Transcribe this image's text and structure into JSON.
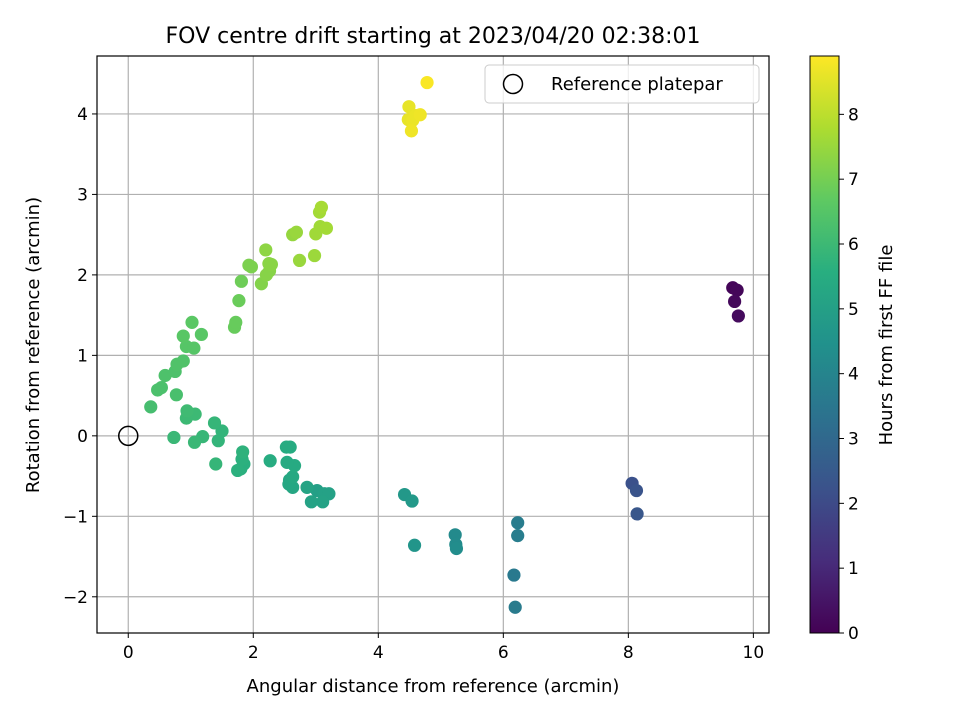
{
  "chart_data": {
    "type": "scatter",
    "title": "FOV centre drift starting at 2023/04/20 02:38:01",
    "xlabel": "Angular distance from reference (arcmin)",
    "ylabel": "Rotation from reference (arcmin)",
    "colorbar_label": "Hours from first FF file",
    "colormap": "viridis",
    "xlim": [
      -0.5,
      10.25
    ],
    "ylim": [
      -2.45,
      4.72
    ],
    "clim": [
      0,
      8.9
    ],
    "x_ticks": [
      0,
      2,
      4,
      6,
      8,
      10
    ],
    "y_ticks": [
      -2,
      -1,
      0,
      1,
      2,
      3,
      4
    ],
    "colorbar_ticks": [
      0,
      1,
      2,
      3,
      4,
      5,
      6,
      7,
      8
    ],
    "grid": true,
    "legend": {
      "placement": "top-right",
      "entries": [
        {
          "label": "Reference platepar",
          "marker": "hollow-circle"
        }
      ]
    },
    "reference_point": {
      "x": 0,
      "y": 0
    },
    "points": [
      {
        "x": 9.67,
        "y": 1.84,
        "c": 0.1
      },
      {
        "x": 9.74,
        "y": 1.81,
        "c": 0.15
      },
      {
        "x": 9.7,
        "y": 1.67,
        "c": 0.2
      },
      {
        "x": 9.76,
        "y": 1.49,
        "c": 0.25
      },
      {
        "x": 8.06,
        "y": -0.59,
        "c": 2.2
      },
      {
        "x": 8.13,
        "y": -0.68,
        "c": 2.3
      },
      {
        "x": 8.14,
        "y": -0.97,
        "c": 2.4
      },
      {
        "x": 6.17,
        "y": -1.73,
        "c": 3.6
      },
      {
        "x": 6.19,
        "y": -2.13,
        "c": 3.65
      },
      {
        "x": 6.23,
        "y": -1.08,
        "c": 3.7
      },
      {
        "x": 6.23,
        "y": -1.24,
        "c": 3.75
      },
      {
        "x": 5.23,
        "y": -1.23,
        "c": 4.2
      },
      {
        "x": 5.24,
        "y": -1.35,
        "c": 4.25
      },
      {
        "x": 5.25,
        "y": -1.4,
        "c": 4.3
      },
      {
        "x": 4.58,
        "y": -1.36,
        "c": 4.6
      },
      {
        "x": 4.42,
        "y": -0.73,
        "c": 4.7
      },
      {
        "x": 4.54,
        "y": -0.81,
        "c": 4.75
      },
      {
        "x": 3.02,
        "y": -0.68,
        "c": 5.0
      },
      {
        "x": 3.14,
        "y": -0.72,
        "c": 5.05
      },
      {
        "x": 3.21,
        "y": -0.72,
        "c": 5.05
      },
      {
        "x": 3.11,
        "y": -0.82,
        "c": 5.1
      },
      {
        "x": 2.93,
        "y": -0.82,
        "c": 5.1
      },
      {
        "x": 2.86,
        "y": -0.64,
        "c": 5.15
      },
      {
        "x": 2.63,
        "y": -0.64,
        "c": 5.25
      },
      {
        "x": 2.57,
        "y": -0.6,
        "c": 5.3
      },
      {
        "x": 2.58,
        "y": -0.55,
        "c": 5.3
      },
      {
        "x": 2.63,
        "y": -0.51,
        "c": 5.35
      },
      {
        "x": 2.66,
        "y": -0.37,
        "c": 5.4
      },
      {
        "x": 2.54,
        "y": -0.33,
        "c": 5.4
      },
      {
        "x": 2.59,
        "y": -0.14,
        "c": 5.45
      },
      {
        "x": 2.53,
        "y": -0.14,
        "c": 5.45
      },
      {
        "x": 2.27,
        "y": -0.31,
        "c": 5.5
      },
      {
        "x": 1.85,
        "y": -0.35,
        "c": 5.6
      },
      {
        "x": 1.8,
        "y": -0.41,
        "c": 5.6
      },
      {
        "x": 1.75,
        "y": -0.43,
        "c": 5.65
      },
      {
        "x": 1.82,
        "y": -0.29,
        "c": 5.65
      },
      {
        "x": 1.83,
        "y": -0.2,
        "c": 5.7
      },
      {
        "x": 1.5,
        "y": 0.06,
        "c": 5.8
      },
      {
        "x": 1.44,
        "y": -0.06,
        "c": 5.8
      },
      {
        "x": 1.38,
        "y": 0.16,
        "c": 5.85
      },
      {
        "x": 1.4,
        "y": -0.35,
        "c": 5.85
      },
      {
        "x": 1.19,
        "y": -0.01,
        "c": 5.9
      },
      {
        "x": 1.06,
        "y": -0.08,
        "c": 5.95
      },
      {
        "x": 0.73,
        "y": -0.02,
        "c": 5.95
      },
      {
        "x": 1.07,
        "y": 0.27,
        "c": 6.0
      },
      {
        "x": 0.93,
        "y": 0.22,
        "c": 6.0
      },
      {
        "x": 0.94,
        "y": 0.31,
        "c": 6.05
      },
      {
        "x": 0.36,
        "y": 0.36,
        "c": 6.2
      },
      {
        "x": 0.77,
        "y": 0.51,
        "c": 6.25
      },
      {
        "x": 0.47,
        "y": 0.57,
        "c": 6.3
      },
      {
        "x": 0.53,
        "y": 0.6,
        "c": 6.3
      },
      {
        "x": 0.59,
        "y": 0.75,
        "c": 6.35
      },
      {
        "x": 0.75,
        "y": 0.8,
        "c": 6.35
      },
      {
        "x": 0.78,
        "y": 0.89,
        "c": 6.4
      },
      {
        "x": 0.88,
        "y": 0.93,
        "c": 6.4
      },
      {
        "x": 0.93,
        "y": 1.11,
        "c": 6.5
      },
      {
        "x": 1.05,
        "y": 1.09,
        "c": 6.5
      },
      {
        "x": 0.88,
        "y": 1.24,
        "c": 6.55
      },
      {
        "x": 1.17,
        "y": 1.26,
        "c": 6.55
      },
      {
        "x": 1.02,
        "y": 1.41,
        "c": 6.6
      },
      {
        "x": 1.7,
        "y": 1.35,
        "c": 6.8
      },
      {
        "x": 1.72,
        "y": 1.41,
        "c": 6.8
      },
      {
        "x": 1.77,
        "y": 1.68,
        "c": 6.85
      },
      {
        "x": 1.81,
        "y": 1.92,
        "c": 6.9
      },
      {
        "x": 1.93,
        "y": 2.12,
        "c": 7.1
      },
      {
        "x": 1.97,
        "y": 2.1,
        "c": 7.1
      },
      {
        "x": 2.13,
        "y": 1.89,
        "c": 7.2
      },
      {
        "x": 2.21,
        "y": 2.0,
        "c": 7.25
      },
      {
        "x": 2.26,
        "y": 2.05,
        "c": 7.25
      },
      {
        "x": 2.25,
        "y": 2.14,
        "c": 7.3
      },
      {
        "x": 2.29,
        "y": 2.13,
        "c": 7.3
      },
      {
        "x": 2.2,
        "y": 2.31,
        "c": 7.35
      },
      {
        "x": 2.63,
        "y": 2.5,
        "c": 7.45
      },
      {
        "x": 2.69,
        "y": 2.53,
        "c": 7.5
      },
      {
        "x": 2.74,
        "y": 2.18,
        "c": 7.5
      },
      {
        "x": 2.98,
        "y": 2.24,
        "c": 7.55
      },
      {
        "x": 3.0,
        "y": 2.51,
        "c": 7.6
      },
      {
        "x": 3.07,
        "y": 2.6,
        "c": 7.6
      },
      {
        "x": 3.17,
        "y": 2.58,
        "c": 7.65
      },
      {
        "x": 3.06,
        "y": 2.78,
        "c": 7.65
      },
      {
        "x": 3.09,
        "y": 2.84,
        "c": 7.7
      },
      {
        "x": 4.49,
        "y": 4.09,
        "c": 8.6
      },
      {
        "x": 4.48,
        "y": 3.93,
        "c": 8.6
      },
      {
        "x": 4.55,
        "y": 3.92,
        "c": 8.65
      },
      {
        "x": 4.6,
        "y": 3.98,
        "c": 8.65
      },
      {
        "x": 4.67,
        "y": 3.99,
        "c": 8.7
      },
      {
        "x": 4.53,
        "y": 3.79,
        "c": 8.7
      },
      {
        "x": 4.78,
        "y": 4.39,
        "c": 8.85
      }
    ]
  }
}
